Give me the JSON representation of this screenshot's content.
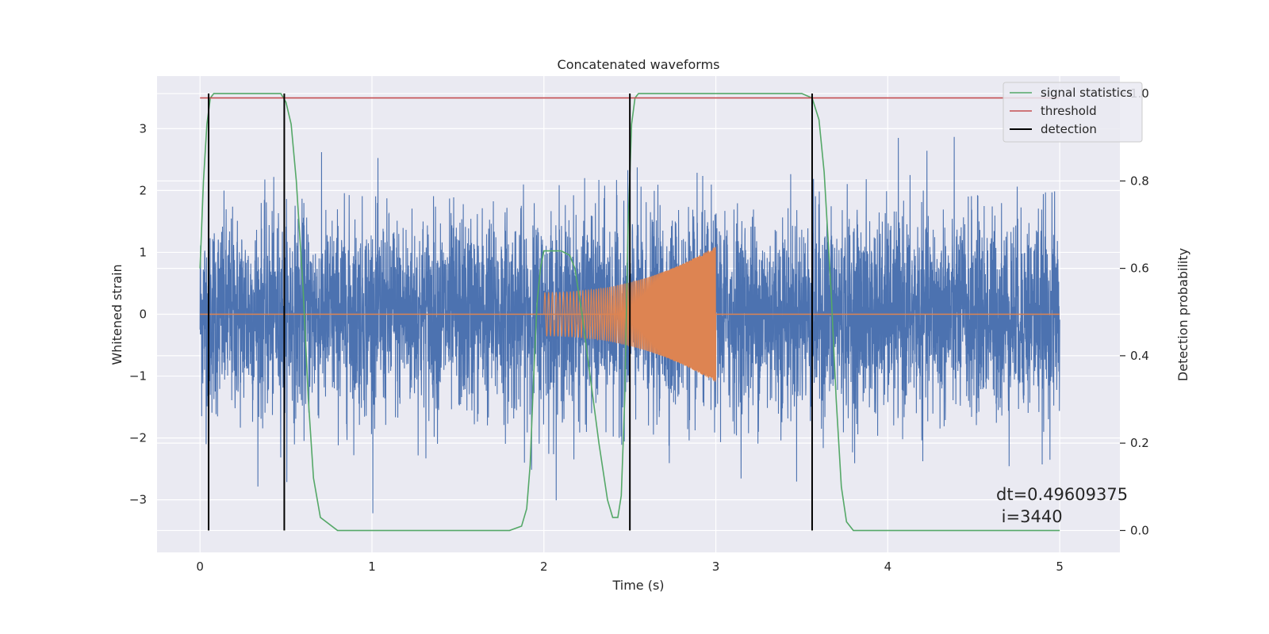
{
  "chart_data": {
    "type": "line",
    "title": "Concatenated waveforms",
    "xlabel": "Time (s)",
    "ylabel_left": "Whitened strain",
    "ylabel_right": "Detection probability",
    "xlim": [
      -0.25,
      5.35
    ],
    "ylim_left": [
      -3.85,
      3.85
    ],
    "ylim_right": [
      -0.05,
      1.04
    ],
    "xticks": [
      0,
      1,
      2,
      3,
      4,
      5
    ],
    "xtick_labels": [
      "0",
      "1",
      "2",
      "3",
      "4",
      "5"
    ],
    "yticks_left": [
      -3,
      -2,
      -1,
      0,
      1,
      2,
      3
    ],
    "ytick_labels_left": [
      "−3",
      "−2",
      "−1",
      "0",
      "1",
      "2",
      "3"
    ],
    "yticks_right": [
      0.0,
      0.2,
      0.4,
      0.6,
      0.8,
      1.0
    ],
    "ytick_labels_right": [
      "0.0",
      "0.2",
      "0.4",
      "0.6",
      "0.8",
      "1.0"
    ],
    "grid": true,
    "background": "#eaeaf2",
    "legend_placement": "top-right",
    "legend": [
      {
        "label": "signal statistics",
        "color": "#55a868"
      },
      {
        "label": "threshold",
        "color": "#c44e52"
      },
      {
        "label": "detection",
        "color": "#000000"
      }
    ],
    "series": [
      {
        "name": "strain",
        "axis": "left",
        "color": "#4c72b0",
        "style": "noise",
        "x_range": [
          0,
          5
        ],
        "sigma": 0.8,
        "peak_range": [
          -3.5,
          3.5
        ]
      },
      {
        "name": "waveform",
        "axis": "left",
        "color": "#dd8452",
        "style": "chirp",
        "zero_line_range": [
          0,
          5
        ],
        "chirp_range": [
          2.0,
          3.0
        ],
        "amplitude_start": 0.35,
        "amplitude_end": 1.1
      },
      {
        "name": "signal statistics",
        "axis": "right",
        "color": "#55a868",
        "x": [
          0.0,
          0.02,
          0.04,
          0.06,
          0.08,
          0.1,
          0.2,
          0.3,
          0.4,
          0.47,
          0.5,
          0.53,
          0.56,
          0.6,
          0.63,
          0.66,
          0.7,
          0.8,
          1.0,
          1.4,
          1.8,
          1.87,
          1.9,
          1.92,
          1.94,
          1.96,
          1.98,
          2.0,
          2.05,
          2.1,
          2.15,
          2.18,
          2.22,
          2.27,
          2.32,
          2.37,
          2.4,
          2.43,
          2.45,
          2.47,
          2.49,
          2.51,
          2.53,
          2.55,
          2.6,
          3.0,
          3.5,
          3.56,
          3.6,
          3.63,
          3.67,
          3.7,
          3.73,
          3.76,
          3.8,
          4.0,
          4.5,
          5.0
        ],
        "y": [
          0.6,
          0.8,
          0.93,
          0.99,
          1.0,
          1.0,
          1.0,
          1.0,
          1.0,
          1.0,
          0.98,
          0.93,
          0.8,
          0.55,
          0.3,
          0.12,
          0.03,
          0.0,
          0.0,
          0.0,
          0.0,
          0.01,
          0.05,
          0.15,
          0.35,
          0.52,
          0.6,
          0.64,
          0.64,
          0.64,
          0.63,
          0.6,
          0.5,
          0.35,
          0.2,
          0.07,
          0.03,
          0.03,
          0.08,
          0.3,
          0.7,
          0.93,
          0.99,
          1.0,
          1.0,
          1.0,
          1.0,
          0.99,
          0.94,
          0.82,
          0.55,
          0.3,
          0.1,
          0.02,
          0.0,
          0.0,
          0.0,
          0.0
        ]
      },
      {
        "name": "threshold",
        "axis": "right",
        "color": "#c44e52",
        "x": [
          0,
          5
        ],
        "y": [
          0.99,
          0.99
        ]
      }
    ],
    "detections": [
      0.05,
      0.49,
      2.5,
      3.56
    ],
    "annotations": [
      "dt=0.49609375",
      " i=3440"
    ]
  }
}
